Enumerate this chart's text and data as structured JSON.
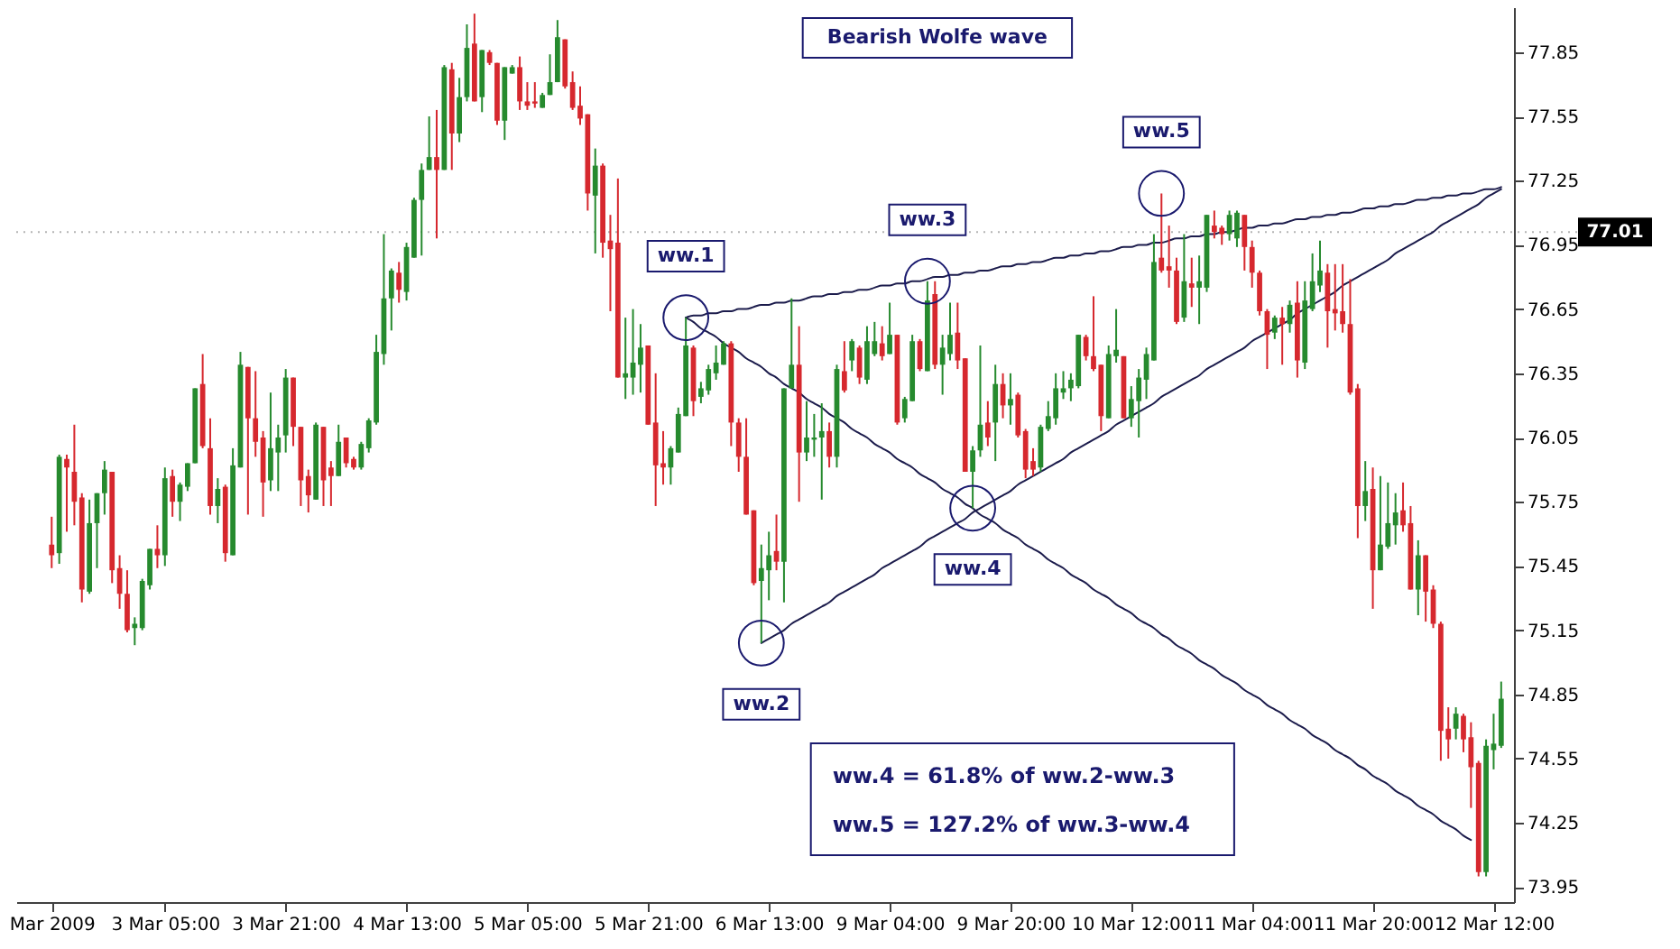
{
  "chart_data": {
    "type": "candlestick",
    "title": "Bearish Wolfe wave",
    "categories": [
      "Mar 2009",
      null,
      null,
      null,
      null,
      null,
      null,
      null,
      null,
      null,
      null,
      null,
      null,
      null,
      null,
      "3 Mar 05:00",
      null,
      null,
      null,
      null,
      null,
      null,
      null,
      null,
      null,
      null,
      null,
      null,
      null,
      null,
      null,
      "3 Mar 21:00",
      null,
      null,
      null,
      null,
      null,
      null,
      null,
      null,
      null,
      null,
      null,
      null,
      null,
      null,
      null,
      "4 Mar 13:00",
      null,
      null,
      null,
      null,
      null,
      null,
      null,
      null,
      null,
      null,
      null,
      null,
      null,
      null,
      null,
      "5 Mar 05:00",
      null,
      null,
      null,
      null,
      null,
      null,
      null,
      null,
      null,
      null,
      null,
      null,
      null,
      null,
      null,
      "5 Mar 21:00",
      null,
      null,
      null,
      null,
      null,
      null,
      null,
      null,
      null,
      null,
      null,
      null,
      null,
      null,
      null,
      "6 Mar 13:00",
      null,
      null,
      null,
      null,
      null,
      null,
      null,
      null,
      null,
      null,
      null,
      null,
      null,
      null,
      null,
      "9 Mar 04:00",
      null,
      null,
      null,
      null,
      null,
      null,
      null,
      null,
      null,
      null,
      null,
      null,
      null,
      null,
      null,
      "9 Mar 20:00",
      null,
      null,
      null,
      null,
      null,
      null,
      null,
      null,
      null,
      null,
      null,
      null,
      null,
      null,
      null,
      "10 Mar 12:00",
      null,
      null,
      null,
      null,
      null,
      null,
      null,
      null,
      null,
      null,
      null,
      null,
      null,
      null,
      null,
      "11 Mar 04:00",
      null,
      null,
      null,
      null,
      null,
      null,
      null,
      null,
      null,
      null,
      null,
      null,
      null,
      null,
      null,
      "11 Mar 20:00",
      null,
      null,
      null,
      null,
      null,
      null,
      null,
      null,
      null,
      null,
      null,
      null,
      null,
      null,
      null,
      "12 Mar 12:00",
      null
    ],
    "ohlc": [
      [
        75.55,
        75.68,
        75.44,
        75.5
      ],
      [
        75.51,
        75.97,
        75.46,
        75.96
      ],
      [
        75.95,
        75.97,
        75.61,
        75.91
      ],
      [
        75.89,
        76.11,
        75.64,
        75.75
      ],
      [
        75.77,
        75.79,
        75.28,
        75.34
      ],
      [
        75.33,
        75.76,
        75.32,
        75.65
      ],
      [
        75.65,
        75.79,
        75.44,
        75.79
      ],
      [
        75.79,
        75.94,
        75.69,
        75.9
      ],
      [
        75.89,
        75.89,
        75.37,
        75.43
      ],
      [
        75.44,
        75.5,
        75.25,
        75.32
      ],
      [
        75.32,
        75.43,
        75.14,
        75.15
      ],
      [
        75.16,
        75.21,
        75.08,
        75.18
      ],
      [
        75.16,
        75.39,
        75.15,
        75.38
      ],
      [
        75.36,
        75.53,
        75.34,
        75.53
      ],
      [
        75.53,
        75.64,
        75.44,
        75.5
      ],
      [
        75.5,
        75.91,
        75.45,
        75.86
      ],
      [
        75.87,
        75.9,
        75.68,
        75.75
      ],
      [
        75.75,
        75.84,
        75.66,
        75.83
      ],
      [
        75.82,
        75.93,
        75.8,
        75.93
      ],
      [
        75.93,
        76.28,
        75.93,
        76.28
      ],
      [
        76.3,
        76.44,
        76.0,
        76.01
      ],
      [
        76.0,
        76.14,
        75.69,
        75.73
      ],
      [
        75.73,
        75.86,
        75.65,
        75.81
      ],
      [
        75.82,
        75.83,
        75.47,
        75.51
      ],
      [
        75.5,
        76.0,
        75.5,
        75.92
      ],
      [
        75.91,
        76.45,
        75.91,
        76.39
      ],
      [
        76.38,
        76.38,
        75.69,
        76.14
      ],
      [
        76.14,
        76.36,
        75.96,
        76.03
      ],
      [
        76.05,
        76.08,
        75.68,
        75.84
      ],
      [
        75.85,
        76.26,
        75.8,
        76.0
      ],
      [
        75.98,
        76.11,
        75.8,
        76.05
      ],
      [
        76.06,
        76.37,
        75.98,
        76.33
      ],
      [
        76.33,
        76.33,
        76.01,
        76.1
      ],
      [
        76.1,
        76.1,
        75.73,
        75.85
      ],
      [
        75.87,
        75.9,
        75.7,
        75.78
      ],
      [
        75.76,
        76.12,
        75.76,
        76.11
      ],
      [
        76.1,
        76.1,
        75.73,
        75.85
      ],
      [
        75.91,
        75.94,
        75.73,
        75.87
      ],
      [
        75.87,
        76.11,
        75.87,
        76.03
      ],
      [
        76.05,
        76.05,
        75.91,
        75.93
      ],
      [
        75.95,
        75.96,
        75.9,
        75.91
      ],
      [
        75.91,
        76.03,
        75.9,
        76.02
      ],
      [
        76.0,
        76.14,
        75.98,
        76.13
      ],
      [
        76.12,
        76.53,
        76.11,
        76.45
      ],
      [
        76.44,
        77.0,
        76.39,
        76.7
      ],
      [
        76.7,
        76.84,
        76.55,
        76.83
      ],
      [
        76.82,
        76.87,
        76.68,
        76.74
      ],
      [
        76.73,
        76.96,
        76.69,
        76.94
      ],
      [
        76.89,
        77.17,
        76.89,
        77.16
      ],
      [
        77.16,
        77.33,
        76.9,
        77.3
      ],
      [
        77.3,
        77.55,
        77.3,
        77.36
      ],
      [
        77.36,
        77.58,
        76.98,
        77.3
      ],
      [
        77.3,
        77.79,
        77.3,
        77.78
      ],
      [
        77.77,
        77.8,
        77.3,
        77.47
      ],
      [
        77.47,
        77.73,
        77.43,
        77.64
      ],
      [
        77.64,
        77.98,
        77.62,
        77.87
      ],
      [
        77.89,
        78.03,
        77.62,
        77.62
      ],
      [
        77.64,
        77.86,
        77.57,
        77.86
      ],
      [
        77.85,
        77.86,
        77.79,
        77.8
      ],
      [
        77.8,
        77.8,
        77.51,
        77.53
      ],
      [
        77.53,
        77.78,
        77.44,
        77.78
      ],
      [
        77.75,
        77.79,
        77.75,
        77.78
      ],
      [
        77.78,
        77.83,
        77.58,
        77.62
      ],
      [
        77.62,
        77.71,
        77.58,
        77.6
      ],
      [
        77.62,
        77.71,
        77.59,
        77.61
      ],
      [
        77.59,
        77.66,
        77.59,
        77.65
      ],
      [
        77.65,
        77.84,
        77.65,
        77.71
      ],
      [
        77.71,
        78.0,
        77.71,
        77.92
      ],
      [
        77.91,
        77.91,
        77.68,
        77.69
      ],
      [
        77.71,
        77.76,
        77.58,
        77.59
      ],
      [
        77.6,
        77.69,
        77.51,
        77.54
      ],
      [
        77.56,
        77.56,
        77.11,
        77.19
      ],
      [
        77.18,
        77.4,
        76.91,
        77.32
      ],
      [
        77.32,
        77.33,
        76.89,
        76.96
      ],
      [
        76.97,
        77.09,
        76.64,
        76.93
      ],
      [
        76.96,
        77.26,
        76.33,
        76.33
      ],
      [
        76.33,
        76.61,
        76.23,
        76.35
      ],
      [
        76.33,
        76.65,
        76.25,
        76.4
      ],
      [
        76.39,
        76.58,
        76.26,
        76.47
      ],
      [
        76.48,
        76.48,
        76.11,
        76.11
      ],
      [
        76.12,
        76.35,
        75.73,
        75.92
      ],
      [
        75.93,
        76.08,
        75.83,
        75.91
      ],
      [
        75.91,
        76.01,
        75.83,
        76.0
      ],
      [
        75.98,
        76.19,
        75.98,
        76.16
      ],
      [
        76.15,
        76.61,
        76.15,
        76.48
      ],
      [
        76.47,
        76.48,
        76.15,
        76.22
      ],
      [
        76.24,
        76.31,
        76.21,
        76.28
      ],
      [
        76.27,
        76.39,
        76.25,
        76.37
      ],
      [
        76.35,
        76.48,
        76.32,
        76.4
      ],
      [
        76.39,
        76.5,
        76.39,
        76.49
      ],
      [
        76.49,
        76.5,
        76.01,
        76.12
      ],
      [
        76.12,
        76.14,
        75.89,
        75.96
      ],
      [
        75.96,
        76.14,
        75.69,
        75.69
      ],
      [
        75.71,
        75.71,
        75.36,
        75.37
      ],
      [
        75.38,
        75.55,
        75.09,
        75.44
      ],
      [
        75.43,
        75.61,
        75.29,
        75.5
      ],
      [
        75.52,
        75.69,
        75.43,
        75.47
      ],
      [
        75.47,
        76.28,
        75.28,
        76.28
      ],
      [
        76.28,
        76.7,
        76.28,
        76.39
      ],
      [
        76.39,
        76.57,
        75.75,
        75.98
      ],
      [
        75.98,
        76.22,
        75.94,
        76.05
      ],
      [
        76.04,
        76.16,
        75.96,
        76.05
      ],
      [
        76.05,
        76.21,
        75.76,
        76.08
      ],
      [
        76.08,
        76.12,
        75.91,
        75.96
      ],
      [
        75.96,
        76.39,
        75.91,
        76.37
      ],
      [
        76.36,
        76.5,
        76.26,
        76.27
      ],
      [
        76.41,
        76.51,
        76.36,
        76.5
      ],
      [
        76.47,
        76.48,
        76.3,
        76.33
      ],
      [
        76.32,
        76.57,
        76.3,
        76.5
      ],
      [
        76.44,
        76.59,
        76.43,
        76.5
      ],
      [
        76.49,
        76.57,
        76.41,
        76.43
      ],
      [
        76.44,
        76.68,
        76.44,
        76.53
      ],
      [
        76.53,
        76.53,
        76.11,
        76.12
      ],
      [
        76.14,
        76.24,
        76.12,
        76.23
      ],
      [
        76.22,
        76.53,
        76.22,
        76.5
      ],
      [
        76.5,
        76.51,
        76.36,
        76.37
      ],
      [
        76.36,
        76.78,
        76.36,
        76.69
      ],
      [
        76.72,
        76.78,
        76.37,
        76.39
      ],
      [
        76.39,
        76.53,
        76.25,
        76.47
      ],
      [
        76.44,
        76.68,
        76.41,
        76.53
      ],
      [
        76.54,
        76.68,
        76.37,
        76.41
      ],
      [
        76.42,
        76.42,
        75.89,
        75.89
      ],
      [
        75.89,
        76.01,
        75.72,
        75.99
      ],
      [
        75.99,
        76.48,
        75.96,
        76.11
      ],
      [
        76.12,
        76.22,
        76.01,
        76.05
      ],
      [
        76.12,
        76.39,
        75.94,
        76.3
      ],
      [
        76.3,
        76.35,
        76.14,
        76.2
      ],
      [
        76.2,
        76.35,
        76.11,
        76.23
      ],
      [
        76.25,
        76.26,
        76.05,
        76.06
      ],
      [
        76.08,
        76.09,
        75.86,
        75.9
      ],
      [
        75.94,
        76.0,
        75.87,
        75.9
      ],
      [
        75.91,
        76.11,
        75.89,
        76.1
      ],
      [
        76.09,
        76.22,
        76.08,
        76.15
      ],
      [
        76.14,
        76.35,
        76.11,
        76.28
      ],
      [
        76.26,
        76.36,
        76.23,
        76.28
      ],
      [
        76.28,
        76.35,
        76.22,
        76.32
      ],
      [
        76.29,
        76.53,
        76.28,
        76.53
      ],
      [
        76.52,
        76.53,
        76.41,
        76.43
      ],
      [
        76.43,
        76.71,
        76.36,
        76.37
      ],
      [
        76.39,
        76.39,
        76.08,
        76.15
      ],
      [
        76.14,
        76.48,
        76.14,
        76.44
      ],
      [
        76.43,
        76.65,
        76.4,
        76.46
      ],
      [
        76.43,
        76.43,
        76.14,
        76.14
      ],
      [
        76.14,
        76.29,
        76.1,
        76.23
      ],
      [
        76.22,
        76.37,
        76.05,
        76.33
      ],
      [
        76.32,
        76.47,
        76.23,
        76.44
      ],
      [
        76.41,
        77.0,
        76.41,
        76.87
      ],
      [
        76.89,
        77.19,
        76.82,
        76.83
      ],
      [
        76.85,
        77.04,
        76.75,
        76.83
      ],
      [
        76.83,
        76.89,
        76.58,
        76.59
      ],
      [
        76.61,
        77.0,
        76.59,
        76.78
      ],
      [
        76.77,
        76.89,
        76.66,
        76.75
      ],
      [
        76.75,
        76.9,
        76.58,
        76.78
      ],
      [
        76.75,
        77.09,
        76.73,
        77.09
      ],
      [
        77.04,
        77.11,
        76.98,
        77.01
      ],
      [
        77.03,
        77.04,
        76.95,
        77.0
      ],
      [
        77.0,
        77.11,
        76.97,
        77.09
      ],
      [
        76.98,
        77.11,
        76.94,
        77.1
      ],
      [
        77.09,
        77.09,
        76.83,
        76.94
      ],
      [
        76.94,
        76.97,
        76.75,
        76.82
      ],
      [
        76.82,
        76.83,
        76.62,
        76.64
      ],
      [
        76.64,
        76.65,
        76.37,
        76.53
      ],
      [
        76.54,
        76.62,
        76.51,
        76.61
      ],
      [
        76.61,
        76.66,
        76.39,
        76.58
      ],
      [
        76.58,
        76.69,
        76.54,
        76.67
      ],
      [
        76.68,
        76.78,
        76.33,
        76.41
      ],
      [
        76.4,
        76.78,
        76.37,
        76.69
      ],
      [
        76.65,
        76.91,
        76.64,
        76.78
      ],
      [
        76.76,
        76.97,
        76.73,
        76.83
      ],
      [
        76.82,
        76.86,
        76.47,
        76.64
      ],
      [
        76.65,
        76.86,
        76.55,
        76.63
      ],
      [
        76.64,
        76.86,
        76.54,
        76.58
      ],
      [
        76.58,
        76.79,
        76.25,
        76.26
      ],
      [
        76.28,
        76.3,
        75.58,
        75.73
      ],
      [
        75.73,
        75.94,
        75.66,
        75.8
      ],
      [
        75.81,
        75.91,
        75.25,
        75.43
      ],
      [
        75.43,
        75.87,
        75.43,
        75.55
      ],
      [
        75.54,
        75.84,
        75.53,
        75.65
      ],
      [
        75.64,
        75.79,
        75.55,
        75.7
      ],
      [
        75.71,
        75.84,
        75.61,
        75.64
      ],
      [
        75.65,
        75.73,
        75.34,
        75.34
      ],
      [
        75.34,
        75.57,
        75.22,
        75.5
      ],
      [
        75.5,
        75.5,
        75.19,
        75.33
      ],
      [
        75.34,
        75.36,
        75.16,
        75.18
      ],
      [
        75.18,
        75.19,
        74.54,
        74.68
      ],
      [
        74.69,
        74.79,
        74.55,
        74.64
      ],
      [
        74.69,
        74.79,
        74.64,
        74.76
      ],
      [
        74.75,
        74.76,
        74.58,
        74.64
      ],
      [
        74.65,
        74.72,
        74.32,
        74.51
      ],
      [
        74.53,
        74.54,
        74.0,
        74.02
      ],
      [
        74.02,
        74.64,
        74.0,
        74.61
      ],
      [
        74.59,
        74.76,
        74.5,
        74.62
      ],
      [
        74.61,
        74.91,
        74.6,
        74.83
      ]
    ],
    "colors": [
      "#d6282e",
      "#268a2e",
      "#d6282e",
      "#d6282e",
      "#d6282e",
      "#268a2e",
      "#268a2e",
      "#268a2e",
      "#d6282e",
      "#d6282e",
      "#d6282e",
      "#268a2e",
      "#268a2e",
      "#268a2e",
      "#d6282e",
      "#268a2e",
      "#d6282e",
      "#268a2e",
      "#268a2e",
      "#268a2e",
      "#d6282e",
      "#d6282e",
      "#268a2e",
      "#d6282e",
      "#268a2e",
      "#268a2e",
      "#d6282e",
      "#d6282e",
      "#d6282e",
      "#268a2e",
      "#268a2e",
      "#268a2e",
      "#d6282e",
      "#d6282e",
      "#d6282e",
      "#268a2e",
      "#d6282e",
      "#d6282e",
      "#268a2e",
      "#d6282e",
      "#d6282e",
      "#268a2e",
      "#268a2e",
      "#268a2e",
      "#268a2e",
      "#268a2e",
      "#d6282e",
      "#268a2e",
      "#268a2e",
      "#268a2e",
      "#268a2e",
      "#d6282e",
      "#268a2e",
      "#d6282e",
      "#268a2e",
      "#268a2e",
      "#d6282e",
      "#268a2e",
      "#d6282e",
      "#d6282e",
      "#268a2e",
      "#268a2e",
      "#d6282e",
      "#d6282e",
      "#d6282e",
      "#268a2e",
      "#268a2e",
      "#268a2e",
      "#d6282e",
      "#d6282e",
      "#d6282e",
      "#d6282e",
      "#268a2e",
      "#d6282e",
      "#d6282e",
      "#d6282e",
      "#268a2e",
      "#268a2e",
      "#268a2e",
      "#d6282e",
      "#d6282e",
      "#d6282e",
      "#268a2e",
      "#268a2e",
      "#268a2e",
      "#d6282e",
      "#268a2e",
      "#268a2e",
      "#268a2e",
      "#268a2e",
      "#d6282e",
      "#d6282e",
      "#d6282e",
      "#d6282e",
      "#268a2e",
      "#268a2e",
      "#d6282e",
      "#268a2e",
      "#268a2e",
      "#d6282e",
      "#268a2e",
      "#268a2e",
      "#268a2e",
      "#d6282e",
      "#268a2e",
      "#d6282e",
      "#268a2e",
      "#d6282e",
      "#268a2e",
      "#268a2e",
      "#d6282e",
      "#268a2e",
      "#d6282e",
      "#268a2e",
      "#268a2e",
      "#d6282e",
      "#268a2e",
      "#d6282e",
      "#268a2e",
      "#268a2e",
      "#d6282e",
      "#d6282e",
      "#268a2e",
      "#268a2e",
      "#d6282e",
      "#268a2e",
      "#d6282e",
      "#268a2e",
      "#d6282e",
      "#d6282e",
      "#d6282e",
      "#268a2e",
      "#268a2e",
      "#268a2e",
      "#268a2e",
      "#268a2e",
      "#268a2e",
      "#d6282e",
      "#d6282e",
      "#d6282e",
      "#268a2e",
      "#268a2e",
      "#d6282e",
      "#268a2e",
      "#268a2e",
      "#268a2e",
      "#268a2e",
      "#d6282e",
      "#d6282e",
      "#d6282e",
      "#268a2e",
      "#d6282e",
      "#268a2e",
      "#268a2e",
      "#d6282e",
      "#d6282e",
      "#268a2e",
      "#268a2e",
      "#d6282e",
      "#d6282e",
      "#d6282e",
      "#d6282e",
      "#268a2e",
      "#d6282e",
      "#268a2e",
      "#d6282e",
      "#268a2e",
      "#268a2e",
      "#268a2e",
      "#d6282e",
      "#d6282e",
      "#d6282e",
      "#d6282e",
      "#d6282e",
      "#268a2e",
      "#d6282e",
      "#268a2e",
      "#268a2e",
      "#268a2e",
      "#d6282e",
      "#d6282e",
      "#268a2e",
      "#d6282e",
      "#d6282e",
      "#d6282e",
      "#d6282e",
      "#268a2e",
      "#d6282e",
      "#d6282e",
      "#d6282e",
      "#268a2e",
      "#268a2e",
      "#268a2e"
    ],
    "series": [
      {
        "type": "line",
        "color": "#1c1c4c",
        "values": [
          null,
          null,
          null,
          null,
          null,
          null,
          null,
          null,
          null,
          null,
          null,
          null,
          null,
          null,
          null,
          null,
          null,
          null,
          null,
          null,
          null,
          null,
          null,
          null,
          null,
          null,
          null,
          null,
          null,
          null,
          null,
          null,
          null,
          null,
          null,
          null,
          null,
          null,
          null,
          null,
          null,
          null,
          null,
          null,
          null,
          null,
          null,
          null,
          null,
          null,
          null,
          null,
          null,
          null,
          null,
          null,
          null,
          null,
          null,
          null,
          null,
          null,
          null,
          null,
          null,
          null,
          null,
          null,
          null,
          null,
          null,
          null,
          null,
          null,
          null,
          null,
          null,
          null,
          null,
          null,
          null,
          null,
          null,
          null,
          76.61,
          76.62,
          76.62,
          76.63,
          76.63,
          76.64,
          76.64,
          76.65,
          76.65,
          76.66,
          76.67,
          76.67,
          76.68,
          76.68,
          76.69,
          76.69,
          76.7,
          76.71,
          76.71,
          76.72,
          76.72,
          76.73,
          76.73,
          76.74,
          76.74,
          76.75,
          76.76,
          76.76,
          76.77,
          76.77,
          76.78,
          76.78,
          76.79,
          76.8,
          76.8,
          76.81,
          76.81,
          76.82,
          76.82,
          76.83,
          76.83,
          76.84,
          76.85,
          76.85,
          76.86,
          76.86,
          76.87,
          76.87,
          76.88,
          76.89,
          76.89,
          76.9,
          76.9,
          76.91,
          76.91,
          76.92,
          76.92,
          76.93,
          76.94,
          76.94,
          76.95,
          76.95,
          76.96,
          76.96,
          76.97,
          76.98,
          76.98,
          76.99,
          76.99,
          77.0,
          77.0,
          77.01,
          77.01,
          77.02,
          77.03,
          77.03,
          77.04,
          77.04,
          77.05,
          77.05,
          77.06,
          77.07,
          77.07,
          77.08,
          77.08,
          77.09,
          77.09,
          77.1,
          77.1,
          77.11,
          77.12,
          77.12,
          77.13,
          77.13,
          77.14,
          77.14,
          77.15,
          77.16,
          77.16,
          77.17,
          77.17,
          77.18,
          77.18,
          77.19,
          77.19,
          77.2,
          77.21,
          77.21,
          77.22
        ]
      },
      {
        "type": "line",
        "color": "#1c1c4c",
        "values": [
          null,
          null,
          null,
          null,
          null,
          null,
          null,
          null,
          null,
          null,
          null,
          null,
          null,
          null,
          null,
          null,
          null,
          null,
          null,
          null,
          null,
          null,
          null,
          null,
          null,
          null,
          null,
          null,
          null,
          null,
          null,
          null,
          null,
          null,
          null,
          null,
          null,
          null,
          null,
          null,
          null,
          null,
          null,
          null,
          null,
          null,
          null,
          null,
          null,
          null,
          null,
          null,
          null,
          null,
          null,
          null,
          null,
          null,
          null,
          null,
          null,
          null,
          null,
          null,
          null,
          null,
          null,
          null,
          null,
          null,
          null,
          null,
          null,
          null,
          null,
          null,
          null,
          null,
          null,
          null,
          null,
          null,
          null,
          null,
          76.61,
          76.59,
          76.56,
          76.54,
          76.52,
          76.49,
          76.47,
          76.45,
          76.42,
          76.4,
          76.38,
          76.35,
          76.33,
          76.3,
          76.28,
          76.26,
          76.23,
          76.21,
          76.19,
          76.16,
          76.14,
          76.12,
          76.09,
          76.07,
          76.05,
          76.02,
          76.0,
          75.98,
          75.95,
          75.93,
          75.91,
          75.88,
          75.86,
          75.84,
          75.81,
          75.79,
          75.77,
          75.74,
          75.72,
          75.69,
          75.67,
          75.65,
          75.62,
          75.6,
          75.58,
          75.55,
          75.53,
          75.51,
          75.48,
          75.46,
          75.44,
          75.41,
          75.39,
          75.37,
          75.34,
          75.32,
          75.3,
          75.27,
          75.25,
          75.23,
          75.2,
          75.18,
          75.16,
          75.13,
          75.11,
          75.08,
          75.06,
          75.04,
          75.01,
          74.99,
          74.97,
          74.94,
          74.92,
          74.9,
          74.87,
          74.85,
          74.83,
          74.8,
          74.78,
          74.76,
          74.73,
          74.71,
          74.69,
          74.66,
          74.64,
          74.62,
          74.59,
          74.57,
          74.55,
          74.52,
          74.5,
          74.47,
          74.45,
          74.43,
          74.4,
          74.38,
          74.36,
          74.33,
          74.31,
          74.29,
          74.26,
          74.24,
          74.22,
          74.19,
          74.17,
          null,
          null,
          null,
          null
        ]
      },
      {
        "type": "line",
        "color": "#1c1c4c",
        "values": [
          null,
          null,
          null,
          null,
          null,
          null,
          null,
          null,
          null,
          null,
          null,
          null,
          null,
          null,
          null,
          null,
          null,
          null,
          null,
          null,
          null,
          null,
          null,
          null,
          null,
          null,
          null,
          null,
          null,
          null,
          null,
          null,
          null,
          null,
          null,
          null,
          null,
          null,
          null,
          null,
          null,
          null,
          null,
          null,
          null,
          null,
          null,
          null,
          null,
          null,
          null,
          null,
          null,
          null,
          null,
          null,
          null,
          null,
          null,
          null,
          null,
          null,
          null,
          null,
          null,
          null,
          null,
          null,
          null,
          null,
          null,
          null,
          null,
          null,
          null,
          null,
          null,
          null,
          null,
          null,
          null,
          null,
          null,
          null,
          null,
          null,
          null,
          null,
          null,
          null,
          null,
          null,
          null,
          null,
          75.09,
          75.11,
          75.13,
          75.15,
          75.18,
          75.2,
          75.22,
          75.24,
          75.26,
          75.28,
          75.31,
          75.33,
          75.35,
          75.37,
          75.39,
          75.41,
          75.44,
          75.46,
          75.48,
          75.5,
          75.52,
          75.54,
          75.57,
          75.59,
          75.61,
          75.63,
          75.65,
          75.67,
          75.7,
          75.72,
          75.74,
          75.76,
          75.78,
          75.8,
          75.83,
          75.85,
          75.87,
          75.89,
          75.91,
          75.93,
          75.95,
          75.98,
          76.0,
          76.02,
          76.04,
          76.06,
          76.08,
          76.11,
          76.13,
          76.15,
          76.17,
          76.19,
          76.21,
          76.24,
          76.26,
          76.28,
          76.3,
          76.32,
          76.34,
          76.37,
          76.39,
          76.41,
          76.43,
          76.45,
          76.47,
          76.5,
          76.52,
          76.54,
          76.56,
          76.58,
          76.6,
          76.63,
          76.65,
          76.67,
          76.69,
          76.71,
          76.73,
          76.76,
          76.78,
          76.8,
          76.82,
          76.84,
          76.86,
          76.88,
          76.91,
          76.93,
          76.95,
          76.97,
          76.99,
          77.01,
          77.04,
          77.06,
          77.08,
          77.1,
          77.12,
          77.14,
          77.17,
          77.19,
          77.21
        ]
      },
      {
        "type": "scatter",
        "color": "#1a1a6e",
        "marker": "circle",
        "values": [
          null,
          null,
          null,
          null,
          null,
          null,
          null,
          null,
          null,
          null,
          null,
          null,
          null,
          null,
          null,
          null,
          null,
          null,
          null,
          null,
          null,
          null,
          null,
          null,
          null,
          null,
          null,
          null,
          null,
          null,
          null,
          null,
          null,
          null,
          null,
          null,
          null,
          null,
          null,
          null,
          null,
          null,
          null,
          null,
          null,
          null,
          null,
          null,
          null,
          null,
          null,
          null,
          null,
          null,
          null,
          null,
          null,
          null,
          null,
          null,
          null,
          null,
          null,
          null,
          null,
          null,
          null,
          null,
          null,
          null,
          null,
          null,
          null,
          null,
          null,
          null,
          null,
          null,
          null,
          null,
          null,
          null,
          null,
          null,
          76.61,
          null,
          null,
          null,
          null,
          null,
          null,
          null,
          null,
          null,
          75.09,
          null,
          null,
          null,
          null,
          null,
          null,
          null,
          null,
          null,
          null,
          null,
          null,
          null,
          null,
          null,
          null,
          null,
          null,
          null,
          null,
          null,
          76.78,
          null,
          null,
          null,
          null,
          null,
          75.72,
          null,
          null,
          null,
          null,
          null,
          null,
          null,
          null,
          null,
          null,
          null,
          null,
          null,
          null,
          null,
          null,
          null,
          null,
          null,
          null,
          null,
          null,
          null,
          null,
          77.19,
          null,
          null,
          null,
          null,
          null,
          null,
          null,
          null,
          null,
          null,
          null,
          null,
          null,
          null,
          null,
          null,
          null,
          null,
          null,
          null,
          null,
          null,
          null,
          null,
          null,
          null,
          null,
          null,
          null,
          null,
          null,
          null,
          null,
          null,
          null,
          null,
          null,
          null,
          null,
          null,
          null,
          null,
          null,
          null,
          null
        ],
        "value_labels": [
          null,
          null,
          null,
          null,
          null,
          null,
          null,
          null,
          null,
          null,
          null,
          null,
          null,
          null,
          null,
          null,
          null,
          null,
          null,
          null,
          null,
          null,
          null,
          null,
          null,
          null,
          null,
          null,
          null,
          null,
          null,
          null,
          null,
          null,
          null,
          null,
          null,
          null,
          null,
          null,
          null,
          null,
          null,
          null,
          null,
          null,
          null,
          null,
          null,
          null,
          null,
          null,
          null,
          null,
          null,
          null,
          null,
          null,
          null,
          null,
          null,
          null,
          null,
          null,
          null,
          null,
          null,
          null,
          null,
          null,
          null,
          null,
          null,
          null,
          null,
          null,
          null,
          null,
          null,
          null,
          null,
          null,
          null,
          null,
          "ww.1",
          null,
          null,
          null,
          null,
          null,
          null,
          null,
          null,
          null,
          "ww.2",
          null,
          null,
          null,
          null,
          null,
          null,
          null,
          null,
          null,
          null,
          null,
          null,
          null,
          null,
          null,
          null,
          null,
          null,
          null,
          null,
          null,
          "ww.3",
          null,
          null,
          null,
          null,
          null,
          "ww.4",
          null,
          null,
          null,
          null,
          null,
          null,
          null,
          null,
          null,
          null,
          null,
          null,
          null,
          null,
          null,
          null,
          null,
          null,
          null,
          null,
          null,
          null,
          null,
          null,
          "ww.5",
          null,
          null,
          null,
          null,
          null,
          null,
          null,
          null,
          null,
          null,
          null,
          null,
          null,
          null,
          null,
          null,
          null,
          null,
          null,
          null,
          null,
          null,
          null,
          null,
          null,
          null,
          null,
          null,
          null,
          null,
          null,
          null,
          null,
          null,
          null,
          null,
          null,
          null,
          null,
          null,
          null,
          null,
          null,
          null,
          null
        ]
      }
    ],
    "ylim": [
      73.88,
      78.06
    ],
    "yticks": [
      73.95,
      74.25,
      74.55,
      74.85,
      75.15,
      75.45,
      75.75,
      76.05,
      76.35,
      76.65,
      76.95,
      77.25,
      77.55,
      77.85
    ],
    "ref_lines": [
      {
        "axis": "y",
        "value": 77.01,
        "label": "77.01",
        "color": "#b4b4b4",
        "line_style": "dotted"
      }
    ],
    "annotations": [
      "ww.4 = 61.8% of ww.2-ww.3",
      "ww.5 = 127.2% of ww.3-ww.4"
    ]
  }
}
